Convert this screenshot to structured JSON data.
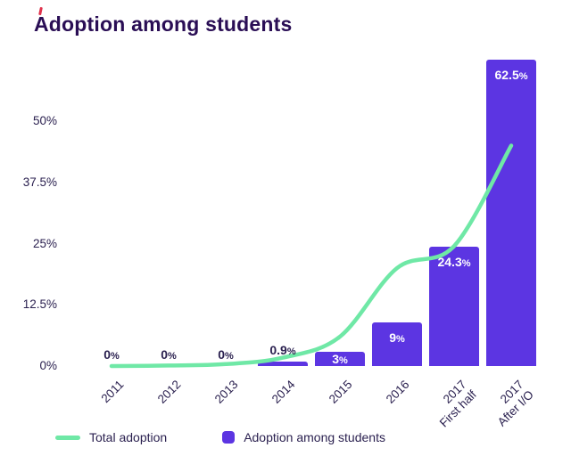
{
  "title": "Adoption among students",
  "colors": {
    "bar": "#5C35E2",
    "line": "#6FE8A6",
    "title": "#2A0E55",
    "axis_text": "#2B2150",
    "inside_label": "#FFFFFF",
    "corner_mark": "#E0314B"
  },
  "legend": [
    {
      "type": "line",
      "color": "#6FE8A6",
      "label": "Total adoption"
    },
    {
      "type": "square",
      "color": "#5C35E2",
      "label": "Adoption among students"
    }
  ],
  "chart_data": {
    "type": "bar+line",
    "title": "Adoption among students",
    "categories": [
      "2011",
      "2012",
      "2013",
      "2014",
      "2015",
      "2016",
      "2017\nFirst half",
      "2017\nAfter I/O"
    ],
    "series": [
      {
        "name": "Total adoption",
        "type": "line",
        "color": "#6FE8A6",
        "values": [
          0,
          0.1,
          0.4,
          1.7,
          6,
          20,
          24.5,
          45
        ]
      },
      {
        "name": "Adoption among students",
        "type": "bar",
        "color": "#5C35E2",
        "values": [
          0,
          0,
          0,
          0.9,
          3,
          9,
          24.3,
          62.5
        ],
        "labels": [
          "0%",
          "0%",
          "0%",
          "0.9%",
          "3%",
          "9%",
          "24.3%",
          "62.5%"
        ]
      }
    ],
    "yticks": [
      {
        "value": 0,
        "label": "0%"
      },
      {
        "value": 12.5,
        "label": "12.5%"
      },
      {
        "value": 25,
        "label": "25%"
      },
      {
        "value": 37.5,
        "label": "37.5%"
      },
      {
        "value": 50,
        "label": "50%"
      }
    ],
    "ylim": [
      0,
      62.5
    ],
    "grid": false,
    "legend_position": "bottom"
  }
}
